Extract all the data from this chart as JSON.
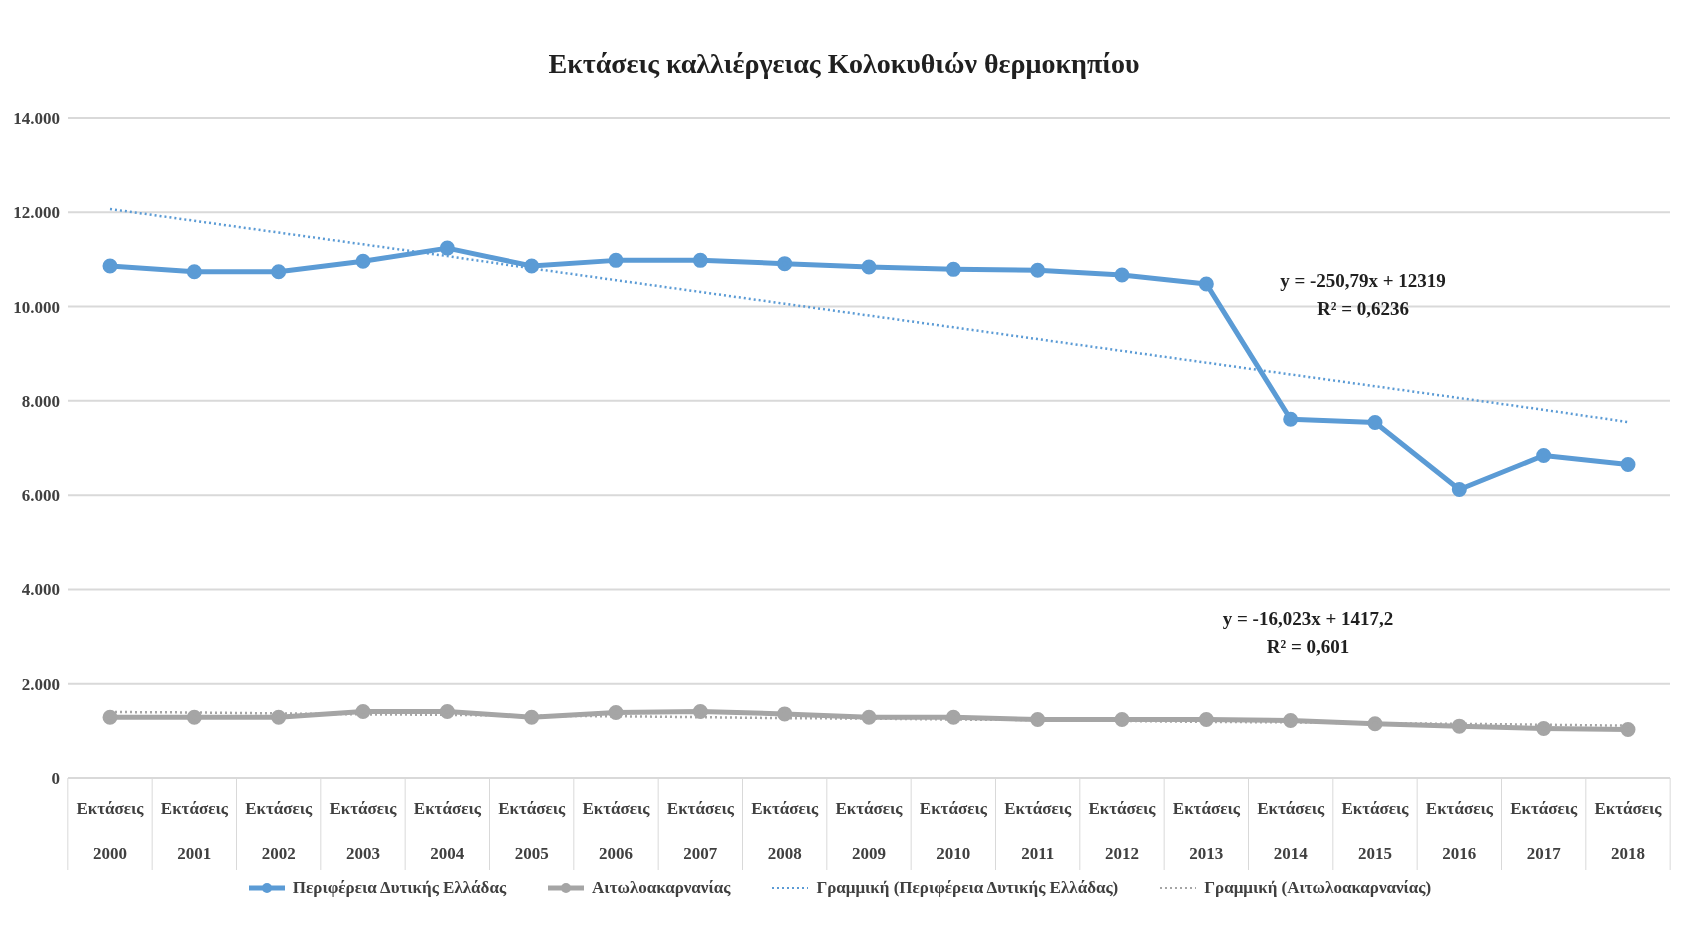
{
  "chart_data": {
    "type": "line",
    "title": "Εκτάσεις καλλιέργειας Κολοκυθιών θερμοκηπίου",
    "categories": [
      "Εκτάσεις 2000",
      "Εκτάσεις 2001",
      "Εκτάσεις 2002",
      "Εκτάσεις 2003",
      "Εκτάσεις 2004",
      "Εκτάσεις 2005",
      "Εκτάσεις 2006",
      "Εκτάσεις 2007",
      "Εκτάσεις 2008",
      "Εκτάσεις 2009",
      "Εκτάσεις 2010",
      "Εκτάσεις 2011",
      "Εκτάσεις 2012",
      "Εκτάσεις 2013",
      "Εκτάσεις 2014",
      "Εκτάσεις 2015",
      "Εκτάσεις 2016",
      "Εκτάσεις 2017",
      "Εκτάσεις 2018"
    ],
    "series": [
      {
        "name": "Περιφέρεια Δυτικής Ελλάδας",
        "color": "#5b9bd5",
        "marker": "circle",
        "line_style": "solid",
        "values": [
          10860,
          10740,
          10740,
          10960,
          11240,
          10860,
          10980,
          10980,
          10910,
          10840,
          10790,
          10770,
          10670,
          10480,
          7610,
          7540,
          6120,
          6840,
          6650
        ]
      },
      {
        "name": "Αιτωλοακαρνανίας",
        "color": "#a5a5a5",
        "marker": "circle",
        "line_style": "solid",
        "values": [
          1290,
          1290,
          1290,
          1410,
          1410,
          1290,
          1390,
          1410,
          1360,
          1290,
          1290,
          1240,
          1240,
          1240,
          1220,
          1150,
          1100,
          1050,
          1030
        ]
      },
      {
        "name": "Γραμμική (Περιφέρεια Δυτικής Ελλάδας)",
        "color": "#5b9bd5",
        "marker": "none",
        "line_style": "dotted",
        "values": [
          12070,
          11820,
          11570,
          11320,
          11070,
          10810,
          10560,
          10310,
          10060,
          9810,
          9560,
          9310,
          9060,
          8810,
          8560,
          8310,
          8060,
          7810,
          7550
        ]
      },
      {
        "name": "Γραμμική (Αιτωλοακαρνανίας)",
        "color": "#a5a5a5",
        "marker": "none",
        "line_style": "dotted",
        "values": [
          1400,
          1390,
          1370,
          1350,
          1340,
          1320,
          1310,
          1290,
          1270,
          1260,
          1240,
          1230,
          1210,
          1190,
          1180,
          1160,
          1150,
          1130,
          1110
        ]
      }
    ],
    "ylim": [
      0,
      14000
    ],
    "yticks": [
      0,
      {
        "value": 2000,
        "label": "2.000"
      },
      {
        "value": 4000,
        "label": "4.000"
      },
      {
        "value": 6000,
        "label": "6.000"
      },
      {
        "value": 8000,
        "label": "8.000"
      },
      {
        "value": 10000,
        "label": "10.000"
      },
      {
        "value": 12000,
        "label": "12.000"
      },
      {
        "value": 14000,
        "label": "14.000"
      }
    ],
    "grid": "y",
    "legend": "bottom",
    "annotations": [
      "y = -250,79x + 12319",
      "R² = 0,6236",
      "y = -16,023x + 1417,2",
      "R² = 0,601"
    ]
  }
}
